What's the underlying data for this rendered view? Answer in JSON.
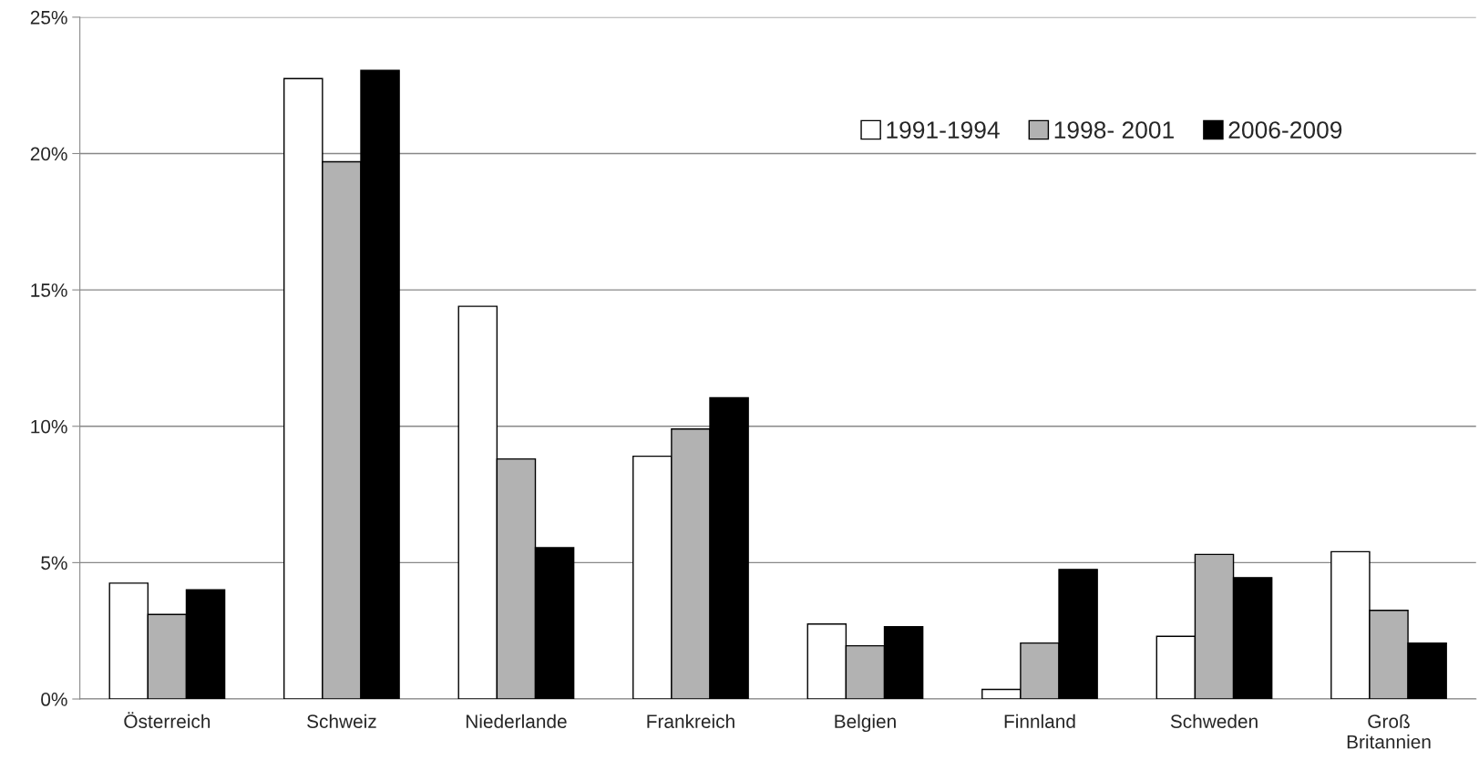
{
  "chart_data": {
    "type": "bar",
    "categories": [
      "Österreich",
      "Schweiz",
      "Niederlande",
      "Frankreich",
      "Belgien",
      "Finnland",
      "Schweden",
      "Groß\nBritannien"
    ],
    "series": [
      {
        "name": "1991-1994",
        "color": "#ffffff",
        "values": [
          4.25,
          22.75,
          14.4,
          8.9,
          2.75,
          0.35,
          2.3,
          5.4
        ]
      },
      {
        "name": "1998- 2001",
        "color": "#b2b2b2",
        "values": [
          3.1,
          19.7,
          8.8,
          9.9,
          1.95,
          2.05,
          5.3,
          3.25
        ]
      },
      {
        "name": "2006-2009",
        "color": "#000000",
        "values": [
          4.0,
          23.05,
          5.55,
          11.05,
          2.65,
          4.75,
          4.45,
          2.05
        ]
      }
    ],
    "ylim": [
      0,
      25
    ],
    "yticks": [
      {
        "value": 0,
        "label": "0%"
      },
      {
        "value": 5,
        "label": "5%"
      },
      {
        "value": 10,
        "label": "10%"
      },
      {
        "value": 15,
        "label": "15%"
      },
      {
        "value": 20,
        "label": "20%"
      },
      {
        "value": 25,
        "label": "25%"
      }
    ],
    "grid": "y",
    "legend": "top right"
  }
}
